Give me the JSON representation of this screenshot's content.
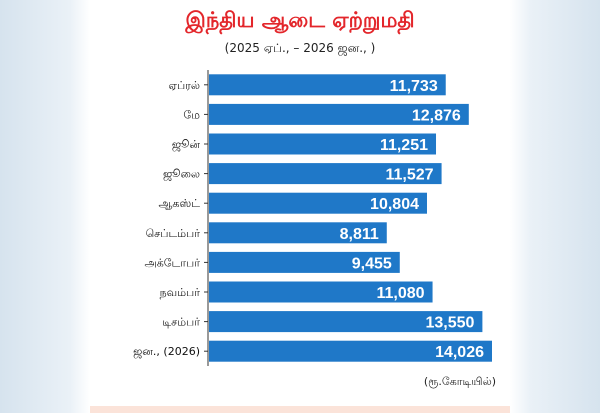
{
  "chart_data": {
    "type": "bar",
    "orientation": "horizontal",
    "title": "இந்திய ஆடை ஏற்றுமதி",
    "subtitle": "(2025 ஏப்., – 2026 ஜன., )",
    "unit_label": "(ரூ.கோடியில்)",
    "categories": [
      "ஏப்ரல்",
      "மே",
      "ஜூன்",
      "ஜூலை",
      "ஆகஸ்ட்",
      "செப்டம்பர்",
      "அக்டோபர்",
      "நவம்பர்",
      "டிசம்பர்",
      "ஜன., (2026)"
    ],
    "values": [
      11733,
      12876,
      11251,
      11527,
      10804,
      8811,
      9455,
      11080,
      13550,
      14026
    ],
    "value_labels": [
      "11,733",
      "12,876",
      "11,251",
      "11,527",
      "10,804",
      "8,811",
      "9,455",
      "11,080",
      "13,550",
      "14,026"
    ],
    "bar_color": "#1f78c8",
    "title_color": "#e3262b",
    "label_color": "#ffffff",
    "grid": false,
    "legend": "none"
  }
}
